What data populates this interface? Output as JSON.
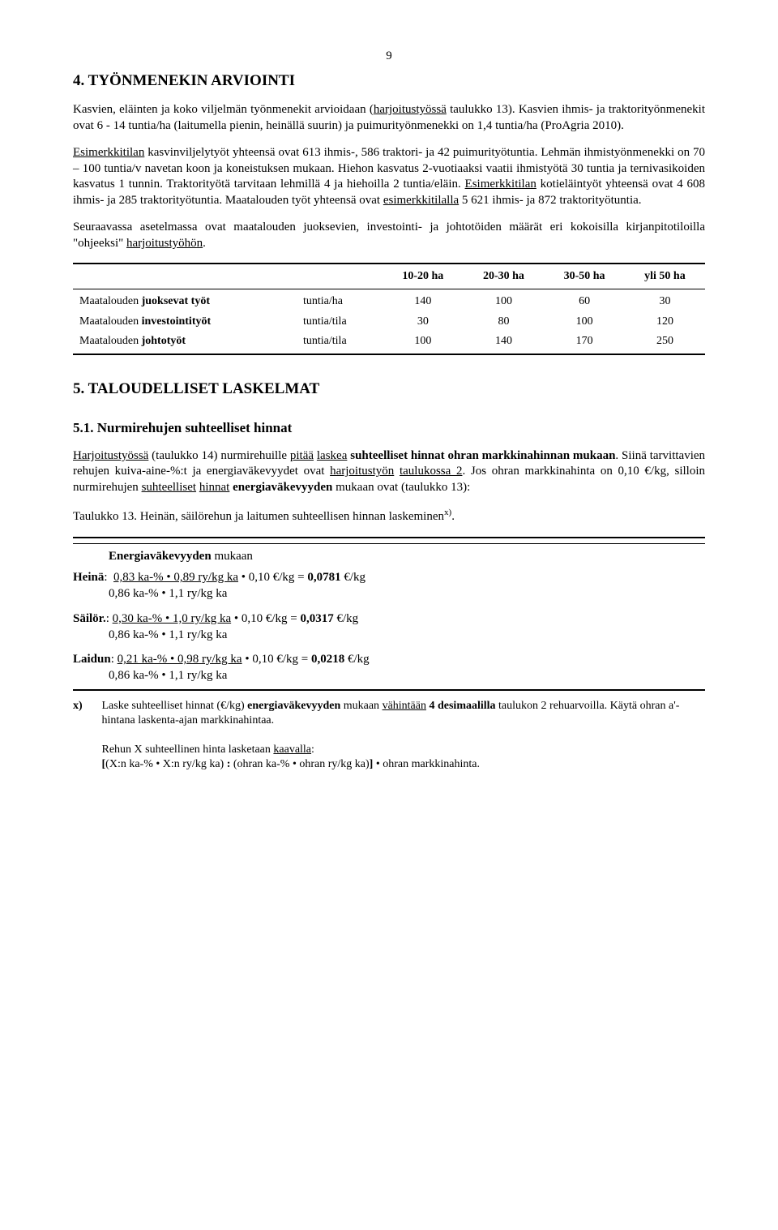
{
  "page_number": "9",
  "h4": "4. TYÖNMENEKIN ARVIOINTI",
  "p1_a": "Kasvien, eläinten ja koko viljelmän työnmenekit arvioidaan (",
  "p1_b": "harjoitustyössä",
  "p1_c": " taulukko 13). Kasvien ihmis- ja traktorityönmenekit ovat 6 - 14 tuntia/ha (laitumella pienin, heinällä suurin) ja puimurityönmenekki on 1,4 tuntia/ha (ProAgria 2010).",
  "p2_a": "Esimerkkitilan",
  "p2_b": " kasvinviljelytyöt yhteensä ovat 613 ihmis-, 586 traktori- ja 42 puimurityötuntia. Lehmän ihmistyönmenekki on 70 – 100 tuntia/v navetan koon ja koneistuksen mukaan. Hiehon kasvatus 2-vuotiaaksi vaatii ihmistyötä 30 tuntia ja ternivasikoiden kasvatus 1 tunnin. Traktorityötä tarvitaan lehmillä 4 ja hiehoilla 2 tuntia/eläin. ",
  "p2_c": "Esimerkkitilan",
  "p2_d": " kotieläintyöt yhteensä ovat 4 608 ihmis- ja 285 traktorityötuntia. Maatalouden työt yhteensä ovat ",
  "p2_e": "esimerkkitilalla",
  "p2_f": " 5 621 ihmis- ja 872 traktorityötuntia.",
  "p3_a": "Seuraavassa asetelmassa ovat maatalouden juoksevien, investointi- ja johtotöiden määrät eri kokoisilla kirjanpitotiloilla \"ohjeeksi\" ",
  "p3_b": "harjoitustyöhön",
  "p3_c": ".",
  "table": {
    "headers": [
      "10-20 ha",
      "20-30 ha",
      "30-50 ha",
      "yli 50 ha"
    ],
    "rows": [
      {
        "label_a": "Maatalouden ",
        "label_b": "juoksevat työt",
        "unit": "tuntia/ha",
        "v": [
          "140",
          "100",
          "60",
          "30"
        ]
      },
      {
        "label_a": "Maatalouden ",
        "label_b": "investointityöt",
        "unit": "tuntia/tila",
        "v": [
          "30",
          "80",
          "100",
          "120"
        ]
      },
      {
        "label_a": "Maatalouden ",
        "label_b": "johtotyöt",
        "unit": "tuntia/tila",
        "v": [
          "100",
          "140",
          "170",
          "250"
        ]
      }
    ]
  },
  "h5": "5. TALOUDELLISET LASKELMAT",
  "h51": "5.1. Nurmirehujen suhteelliset hinnat",
  "p4_a": "Harjoitustyössä",
  "p4_b": " (taulukko 14) nurmirehuille ",
  "p4_c": "pitää",
  "p4_d": " ",
  "p4_e": "laskea",
  "p4_f": " ",
  "p4_g": "suhteelliset hinnat ohran markkinahinnan mukaan",
  "p4_h": ". Siinä tarvittavien rehujen kuiva-aine-%:t ja energiaväkevyydet ovat ",
  "p4_i": "harjoitustyön",
  "p4_j": " ",
  "p4_k": "taulukossa 2",
  "p4_l": ". Jos ohran markkinahinta on 0,10 €/kg, silloin nurmirehujen ",
  "p4_m": "suhteelliset",
  "p4_n": " ",
  "p4_o": "hinnat",
  "p4_p": " ",
  "p4_q": "energiaväkevyyden",
  "p4_r": " mukaan ovat (taulukko 13):",
  "tab13": "Taulukko 13. Heinän, säilörehun ja laitumen suhteellisen hinnan laskeminen",
  "tab13_sup": "x)",
  "energylabel": "Energiaväkevyyden",
  "energylabel2": " mukaan",
  "heina_label": "Heinä",
  "heina_num": "0,83 ka-% • 0,89 ry/kg ka",
  "heina_tail": " • 0,10 €/kg  =  ",
  "heina_res": "0,0781",
  "heina_unit": " €/kg",
  "denom": "0,86 ka-% • 1,1 ry/kg ka",
  "sailor_label": "Säilör.",
  "sailor_num": "0,30 ka-% • 1,0 ry/kg ka",
  "sailor_tail": " • 0,10 €/kg  =  ",
  "sailor_res": "0,0317",
  "sailor_unit": " €/kg",
  "laidun_label": "Laidun",
  "laidun_num": "0,21 ka-% • 0,98 ry/kg ka",
  "laidun_tail": " • 0,10 €/kg  =  ",
  "laidun_res": "0,0218",
  "laidun_unit": " €/kg",
  "fn_label": "x)",
  "fn1_a": "Laske suhteelliset hinnat (€/kg) ",
  "fn1_b": "energiaväkevyyden",
  "fn1_c": " mukaan ",
  "fn1_d": "vähintään",
  "fn1_e": " ",
  "fn1_f": "4 desimaalilla",
  "fn1_g": " taulukon 2 rehuarvoilla. Käytä ohran a'-hintana laskenta-ajan markkinahintaa.",
  "fn2_a": "Rehun X suhteellinen hinta lasketaan ",
  "fn2_b": "kaavalla",
  "fn2_c": ":",
  "fn3_a": "[",
  "fn3_b": "(X:n ka-% • X:n ry/kg ka) ",
  "fn3_c": ":",
  "fn3_d": " (ohran ka-% • ohran ry/kg ka)",
  "fn3_e": "]",
  "fn3_f": " • ohran markkinahinta."
}
